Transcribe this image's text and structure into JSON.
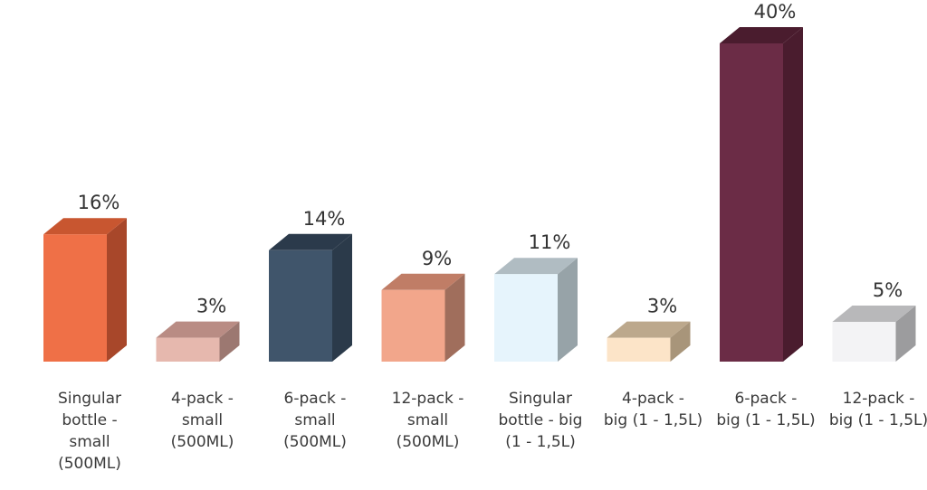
{
  "chart_data": {
    "type": "bar",
    "style": "3d-column",
    "grid": false,
    "legend": "none",
    "ylim": [
      0,
      40
    ],
    "categories": [
      "Singular bottle - small (500ML)",
      "4-pack - small (500ML)",
      "6-pack - small (500ML)",
      "12-pack - small (500ML)",
      "Singular bottle - big (1 - 1,5L)",
      "4-pack - big (1 - 1,5L)",
      "6-pack - big (1 - 1,5L)",
      "12-pack - big (1 - 1,5L)"
    ],
    "category_label_lines": [
      [
        "Singular",
        "bottle -",
        "small",
        "(500ML)"
      ],
      [
        "4-pack -",
        "small",
        "(500ML)"
      ],
      [
        "6-pack -",
        "small",
        "(500ML)"
      ],
      [
        "12-pack -",
        "small",
        "(500ML)"
      ],
      [
        "Singular",
        "bottle - big",
        "(1 - 1,5L)"
      ],
      [
        "4-pack -",
        "big (1 - 1,5L)"
      ],
      [
        "6-pack -",
        "big (1 - 1,5L)"
      ],
      [
        "12-pack -",
        "big (1 - 1,5L)"
      ]
    ],
    "values": [
      16,
      3,
      14,
      9,
      11,
      3,
      40,
      5
    ],
    "value_labels": [
      "16%",
      "3%",
      "14%",
      "9%",
      "11%",
      "3%",
      "40%",
      "5%"
    ],
    "colors": [
      {
        "front": "#ef7047",
        "top": "#c85630",
        "side": "#a8472a"
      },
      {
        "front": "#e6b8ae",
        "top": "#b98c84",
        "side": "#9c7871"
      },
      {
        "front": "#40556b",
        "top": "#2b3a4b",
        "side": "#2b3a4a"
      },
      {
        "front": "#f2a68b",
        "top": "#c07d66",
        "side": "#a06e5c"
      },
      {
        "front": "#e6f4fc",
        "top": "#b0bcc2",
        "side": "#97a3a8"
      },
      {
        "front": "#fce4c8",
        "top": "#bca88c",
        "side": "#a8957a"
      },
      {
        "front": "#6b2c46",
        "top": "#4a1c2e",
        "side": "#4a1c2e"
      },
      {
        "front": "#f3f3f5",
        "top": "#b8b8ba",
        "side": "#9c9c9e"
      }
    ]
  }
}
